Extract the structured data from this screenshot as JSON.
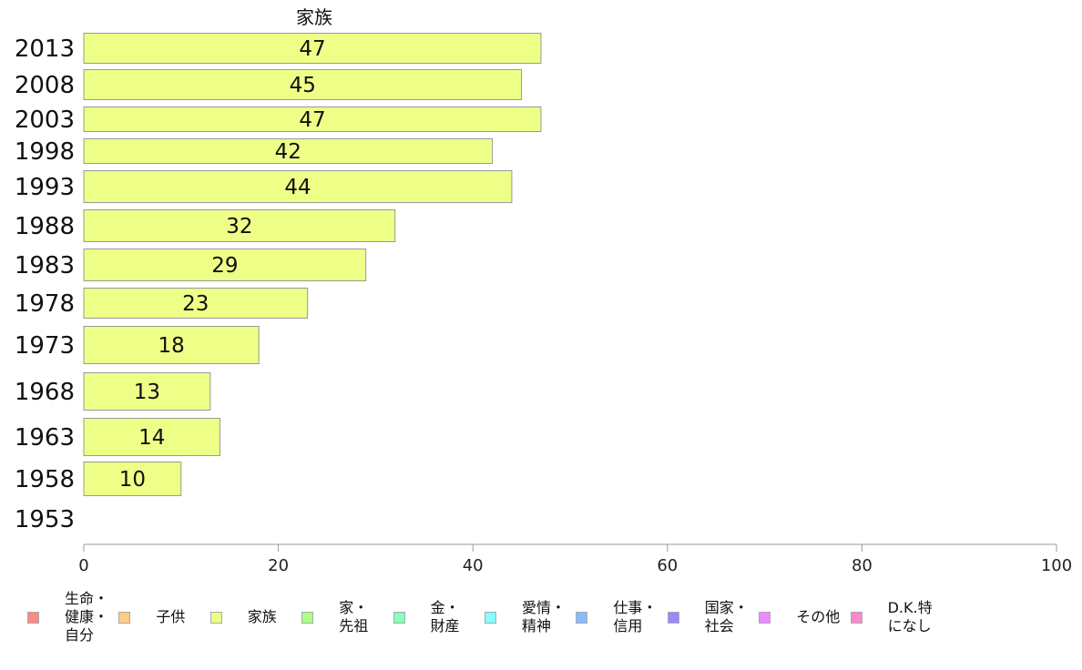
{
  "chart_data": {
    "type": "bar",
    "orientation": "horizontal",
    "title": "家族",
    "categories": [
      "2013",
      "2008",
      "2003",
      "1998",
      "1993",
      "1988",
      "1983",
      "1978",
      "1973",
      "1968",
      "1963",
      "1958",
      "1953"
    ],
    "series": [
      {
        "name": "家族",
        "color": "#eeff88",
        "values": [
          47,
          45,
          47,
          42,
          44,
          32,
          29,
          23,
          18,
          13,
          14,
          10,
          null
        ],
        "labels": [
          "47",
          "45",
          "47",
          "42",
          "44",
          "32",
          "29",
          "23",
          "18",
          "13",
          "14",
          "10",
          ""
        ]
      }
    ],
    "xlim": [
      0,
      100
    ],
    "xticks": [
      "0",
      "20",
      "40",
      "60",
      "80",
      "100"
    ],
    "grid": false,
    "legend_position": "bottom"
  },
  "legend": [
    {
      "label": "生命・\n健康・\n自分",
      "color": "#ff8888"
    },
    {
      "label": "子供",
      "color": "#ffcc88"
    },
    {
      "label": "家族",
      "color": "#eeff88"
    },
    {
      "label": "家・\n先祖",
      "color": "#aaff88"
    },
    {
      "label": "金・\n財産",
      "color": "#88ffbb"
    },
    {
      "label": "愛情・\n精神",
      "color": "#88ffff"
    },
    {
      "label": "仕事・\n信用",
      "color": "#88bbff"
    },
    {
      "label": "国家・\n社会",
      "color": "#9988ff"
    },
    {
      "label": "その他",
      "color": "#ee88ff"
    },
    {
      "label": "D.K.特\nになし",
      "color": "#ff88cc"
    }
  ]
}
